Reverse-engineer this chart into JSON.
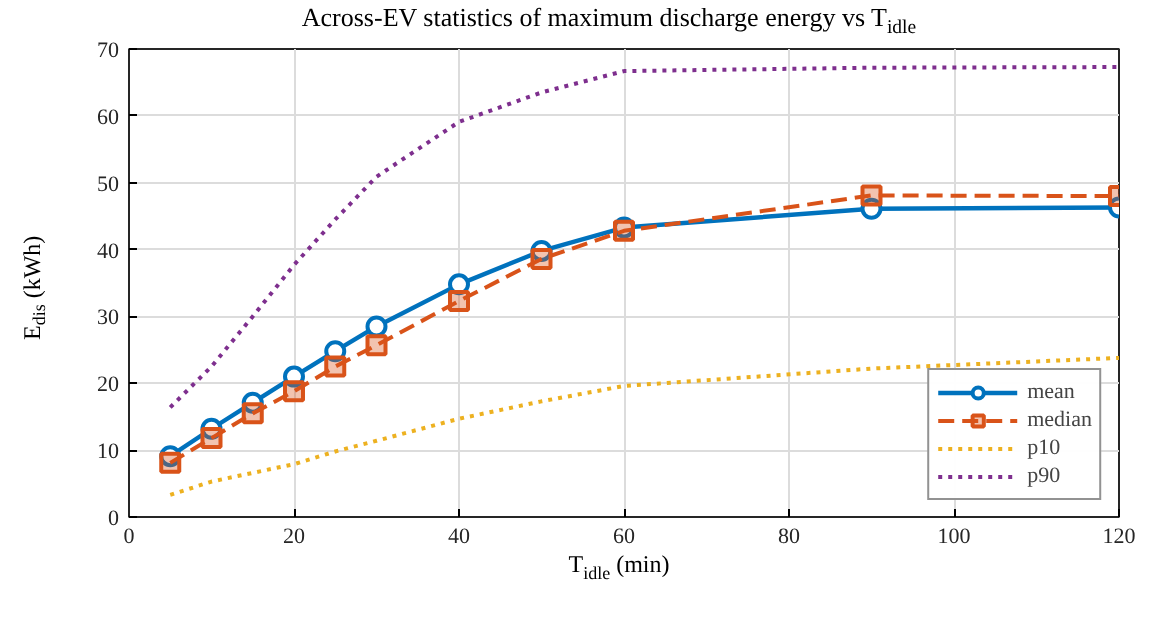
{
  "chart_data": {
    "type": "line",
    "title": "Across-EV statistics of maximum discharge energy vs T$_{idle}$",
    "xlabel": "T$_{idle}$ (min)",
    "ylabel": "E$_{dis}$ (kWh)",
    "x": [
      5,
      10,
      15,
      20,
      25,
      30,
      40,
      50,
      60,
      90,
      120
    ],
    "series": [
      {
        "name": "mean",
        "color": "#0072bd",
        "marker": "circle",
        "line_style": "solid",
        "values": [
          9.1,
          13.2,
          17.1,
          21.0,
          24.8,
          28.5,
          34.8,
          39.8,
          43.3,
          46.1,
          46.3
        ]
      },
      {
        "name": "median",
        "color": "#d95319",
        "marker": "square",
        "line_style": "dashed",
        "values": [
          8.1,
          11.8,
          15.5,
          18.8,
          22.5,
          25.7,
          32.3,
          38.6,
          42.8,
          48.1,
          48.0
        ]
      },
      {
        "name": "p10",
        "color": "#edb120",
        "marker": "none",
        "line_style": "dotted",
        "values": [
          3.3,
          5.3,
          6.6,
          7.9,
          9.8,
          11.4,
          14.7,
          17.3,
          19.6,
          22.2,
          23.8
        ]
      },
      {
        "name": "p90",
        "color": "#7e2f8e",
        "marker": "none",
        "line_style": "dotted",
        "values": [
          16.4,
          22.5,
          30.0,
          37.7,
          44.5,
          50.9,
          59.1,
          63.5,
          66.7,
          67.2,
          67.3
        ]
      }
    ],
    "xlim": [
      0,
      120
    ],
    "xticks": [
      0,
      20,
      40,
      60,
      80,
      100,
      120
    ],
    "ylim": [
      0,
      70
    ],
    "yticks": [
      0,
      10,
      20,
      30,
      40,
      50,
      60,
      70
    ],
    "grid": true,
    "legend": "bottom right"
  }
}
